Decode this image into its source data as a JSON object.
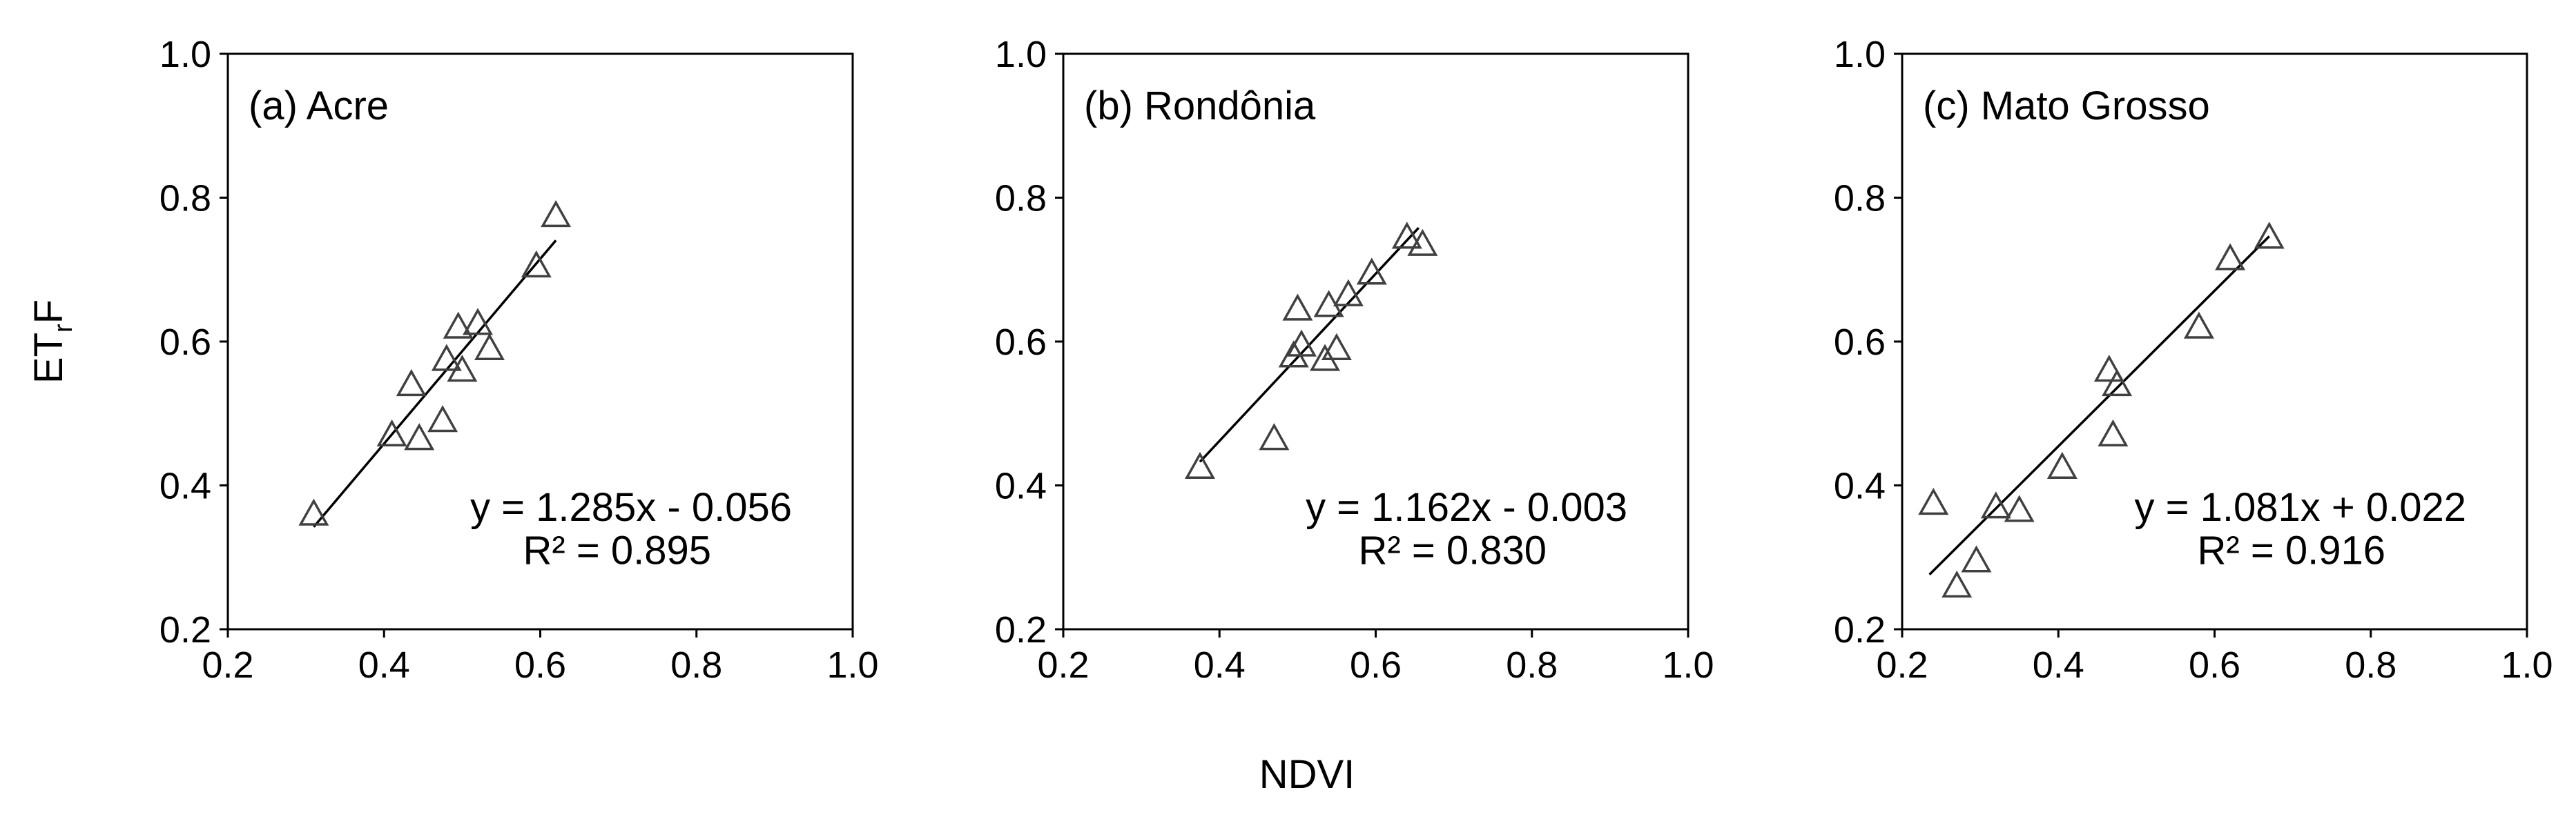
{
  "figure": {
    "xlabel": "NDVI",
    "ylabel": "ET",
    "ylabel_sub": "r",
    "ylabel_tail": "F"
  },
  "colors": {
    "marker": "#404040",
    "fit_line": "#000000",
    "axis": "#000000"
  },
  "chart_data": [
    {
      "type": "scatter",
      "panel_label": "(a) Acre",
      "equation": "y = 1.285x - 0.056",
      "r2": "R² = 0.895",
      "xlim": [
        0.2,
        1.0
      ],
      "ylim": [
        0.2,
        1.0
      ],
      "xticks": [
        "0.2",
        "0.4",
        "0.6",
        "0.8",
        "1.0"
      ],
      "yticks": [
        "0.2",
        "0.4",
        "0.6",
        "0.8",
        "1.0"
      ],
      "marker": "triangle-open",
      "trendline": {
        "slope": 1.285,
        "intercept": -0.056,
        "x_range": [
          0.31,
          0.62
        ]
      },
      "points": [
        [
          0.31,
          0.36
        ],
        [
          0.41,
          0.47
        ],
        [
          0.435,
          0.54
        ],
        [
          0.445,
          0.465
        ],
        [
          0.475,
          0.49
        ],
        [
          0.48,
          0.575
        ],
        [
          0.495,
          0.62
        ],
        [
          0.5,
          0.56
        ],
        [
          0.52,
          0.625
        ],
        [
          0.535,
          0.59
        ],
        [
          0.595,
          0.705
        ],
        [
          0.62,
          0.775
        ]
      ]
    },
    {
      "type": "scatter",
      "panel_label": "(b) Rondônia",
      "equation": "y = 1.162x - 0.003",
      "r2": "R² = 0.830",
      "xlim": [
        0.2,
        1.0
      ],
      "ylim": [
        0.2,
        1.0
      ],
      "xticks": [
        "0.2",
        "0.4",
        "0.6",
        "0.8",
        "1.0"
      ],
      "yticks": [
        "0.2",
        "0.4",
        "0.6",
        "0.8",
        "1.0"
      ],
      "marker": "triangle-open",
      "trendline": {
        "slope": 1.162,
        "intercept": -0.003,
        "x_range": [
          0.375,
          0.655
        ]
      },
      "points": [
        [
          0.375,
          0.425
        ],
        [
          0.47,
          0.465
        ],
        [
          0.495,
          0.58
        ],
        [
          0.5,
          0.645
        ],
        [
          0.505,
          0.595
        ],
        [
          0.535,
          0.575
        ],
        [
          0.54,
          0.65
        ],
        [
          0.55,
          0.59
        ],
        [
          0.565,
          0.665
        ],
        [
          0.595,
          0.695
        ],
        [
          0.64,
          0.745
        ],
        [
          0.66,
          0.735
        ]
      ]
    },
    {
      "type": "scatter",
      "panel_label": "(c) Mato Grosso",
      "equation": "y = 1.081x + 0.022",
      "r2": "R² = 0.916",
      "xlim": [
        0.2,
        1.0
      ],
      "ylim": [
        0.2,
        1.0
      ],
      "xticks": [
        "0.2",
        "0.4",
        "0.6",
        "0.8",
        "1.0"
      ],
      "yticks": [
        "0.2",
        "0.4",
        "0.6",
        "0.8",
        "1.0"
      ],
      "marker": "triangle-open",
      "trendline": {
        "slope": 1.081,
        "intercept": 0.022,
        "x_range": [
          0.235,
          0.67
        ]
      },
      "points": [
        [
          0.24,
          0.375
        ],
        [
          0.27,
          0.26
        ],
        [
          0.295,
          0.295
        ],
        [
          0.32,
          0.37
        ],
        [
          0.35,
          0.365
        ],
        [
          0.405,
          0.425
        ],
        [
          0.465,
          0.56
        ],
        [
          0.47,
          0.47
        ],
        [
          0.475,
          0.54
        ],
        [
          0.58,
          0.62
        ],
        [
          0.62,
          0.715
        ],
        [
          0.67,
          0.745
        ]
      ]
    }
  ]
}
